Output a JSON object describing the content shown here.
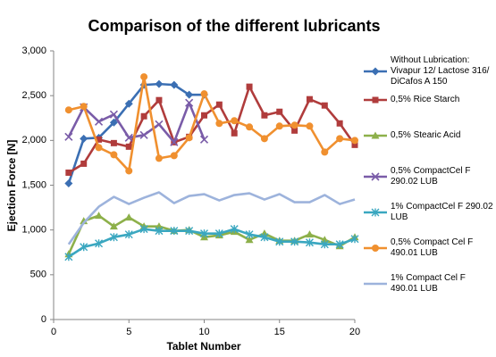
{
  "chart_data": {
    "type": "line",
    "title": "Comparison of the different lubricants",
    "x_label": "Tablet Number",
    "y_label": "Ejection Force [N]",
    "x": [
      1,
      2,
      3,
      4,
      5,
      6,
      7,
      8,
      9,
      10,
      11,
      12,
      13,
      14,
      15,
      16,
      17,
      18,
      19,
      20
    ],
    "xlim": [
      0,
      20
    ],
    "xticks": [
      0,
      5,
      10,
      15,
      20
    ],
    "ylim": [
      0,
      3000
    ],
    "yticks": [
      0,
      500,
      {
        "value": 1000,
        "label": "1,000"
      },
      {
        "value": 1500,
        "label": "1,500"
      },
      {
        "value": 2000,
        "label": "2,000"
      },
      {
        "value": 2500,
        "label": "2,500"
      },
      {
        "value": 3000,
        "label": "3,000"
      }
    ],
    "grid": false,
    "legend": "right",
    "series": [
      {
        "name": "Without Lubrication: Vivapur 12/ Lactose 316/ DiCafos A 150",
        "color": "#3b6fb3",
        "marker": "diamond",
        "values": [
          1520,
          2020,
          2030,
          2200,
          2410,
          2620,
          2630,
          2620,
          2510,
          2510,
          null,
          null,
          null,
          null,
          null,
          null,
          null,
          null,
          null,
          null
        ]
      },
      {
        "name": "0,5% Rice Starch",
        "color": "#b03c3c",
        "marker": "square",
        "values": [
          1640,
          1740,
          2010,
          1970,
          1930,
          2270,
          2450,
          1980,
          2040,
          2280,
          2400,
          2080,
          2600,
          2280,
          2320,
          2110,
          2460,
          2390,
          2190,
          1950
        ]
      },
      {
        "name": "0,5% Stearic Acid",
        "color": "#8db04a",
        "marker": "triangle",
        "values": [
          730,
          1100,
          1160,
          1040,
          1140,
          1040,
          1040,
          990,
          1000,
          920,
          940,
          980,
          890,
          960,
          880,
          880,
          950,
          890,
          820,
          920
        ]
      },
      {
        "name": "0,5% CompactCel F 290.02 LUB",
        "color": "#7a5ca8",
        "marker": "x",
        "values": [
          2040,
          2370,
          2210,
          2290,
          2030,
          2060,
          2180,
          1980,
          2420,
          2010,
          null,
          null,
          null,
          null,
          null,
          null,
          null,
          null,
          null,
          null
        ]
      },
      {
        "name": "1% CompactCel F 290.02 LUB",
        "color": "#3aa7c0",
        "marker": "star",
        "values": [
          700,
          810,
          850,
          920,
          950,
          1010,
          990,
          990,
          990,
          960,
          960,
          1010,
          950,
          920,
          870,
          870,
          860,
          840,
          840,
          900
        ]
      },
      {
        "name": "0,5% Compact Cel F 490.01 LUB",
        "color": "#f0902f",
        "marker": "circle",
        "values": [
          2340,
          2380,
          1920,
          1840,
          1660,
          2710,
          1800,
          1830,
          2030,
          2520,
          2190,
          2220,
          2150,
          2020,
          2160,
          2170,
          2160,
          1870,
          2020,
          2000
        ]
      },
      {
        "name": "1% Compact Cel F 490.01 LUB",
        "color": "#9db3dc",
        "marker": "none",
        "values": [
          840,
          1080,
          1260,
          1370,
          1290,
          1360,
          1420,
          1300,
          1380,
          1400,
          1330,
          1390,
          1410,
          1340,
          1400,
          1310,
          1310,
          1390,
          1290,
          1340
        ]
      }
    ]
  }
}
